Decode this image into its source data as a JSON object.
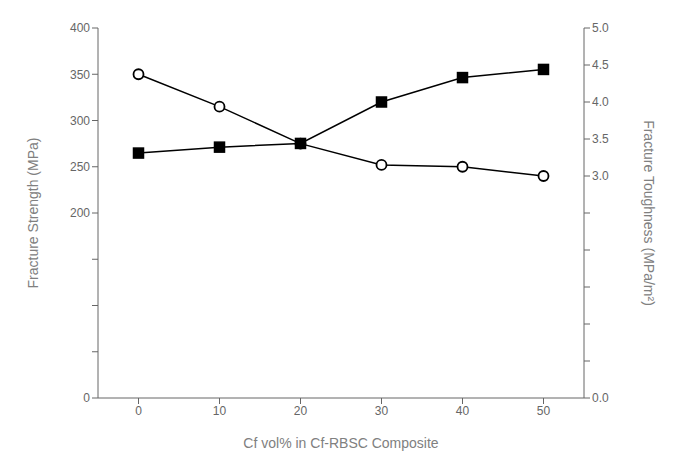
{
  "chart_data": {
    "type": "line",
    "x": [
      0,
      10,
      20,
      30,
      40,
      50
    ],
    "xlabel": "Cf vol% in Cf-RBSC Composite",
    "ylabel": "Fracture Strength (MPa)",
    "y2label": "Fracture Toughness (MPa/m²)",
    "xlim": [
      -5,
      55
    ],
    "xticks": [
      0,
      10,
      20,
      30,
      40,
      50
    ],
    "ylim": [
      0,
      400
    ],
    "yticks": [
      0,
      {
        "value": 50,
        "label": null
      },
      {
        "value": 100,
        "label": null
      },
      {
        "value": 150,
        "label": null
      },
      200,
      250,
      300,
      350,
      400
    ],
    "y2lim": [
      0.0,
      5.0
    ],
    "y2ticks": [
      {
        "value": 0,
        "label": "0.0"
      },
      {
        "value": 0.5,
        "label": null
      },
      {
        "value": 1,
        "label": null
      },
      {
        "value": 1.5,
        "label": null
      },
      {
        "value": 2,
        "label": null
      },
      {
        "value": 2.5,
        "label": null
      },
      {
        "value": 3,
        "label": "3.0"
      },
      3.5,
      {
        "value": 4,
        "label": "4.0"
      },
      4.5,
      {
        "value": 5,
        "label": "5.0"
      }
    ],
    "grid": false,
    "series": [
      {
        "values": [
          350,
          315,
          275,
          252,
          250,
          240
        ],
        "color": "#000000",
        "marker": "circle",
        "line_style": "solid"
      },
      {
        "values": [
          3.31,
          3.39,
          3.44,
          4.0,
          4.33,
          4.44
        ],
        "color": "#000000",
        "marker": "square",
        "line_style": "solid",
        "axis": "y2"
      }
    ]
  }
}
